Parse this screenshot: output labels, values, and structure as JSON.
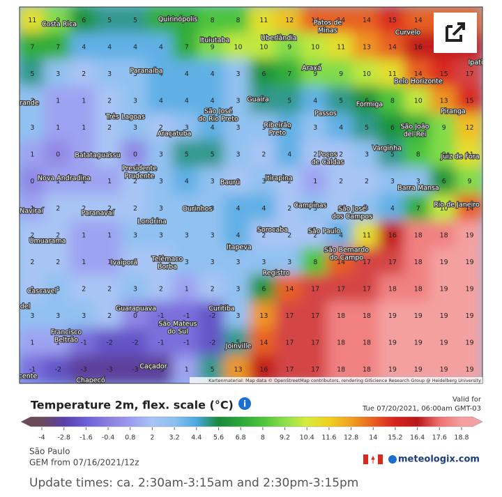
{
  "map": {
    "grid": [
      [
        11,
        9,
        6,
        5,
        5,
        7,
        7,
        8,
        8,
        11,
        12,
        14,
        14,
        14,
        15,
        14,
        14,
        14
      ],
      [
        7,
        7,
        4,
        4,
        4,
        4,
        7,
        9,
        10,
        10,
        9,
        10,
        11,
        13,
        14,
        16,
        16,
        16
      ],
      [
        5,
        3,
        2,
        3,
        3,
        4,
        4,
        4,
        3,
        6,
        7,
        9,
        9,
        10,
        11,
        14,
        15,
        17
      ],
      [
        3,
        1,
        1,
        2,
        3,
        4,
        4,
        4,
        3,
        5,
        5,
        4,
        5,
        6,
        8,
        10,
        13,
        15
      ],
      [
        3,
        1,
        1,
        2,
        3,
        2,
        3,
        4,
        3,
        3,
        4,
        3,
        4,
        5,
        6,
        7,
        9,
        12
      ],
      [
        1,
        0,
        1,
        2,
        0,
        3,
        5,
        5,
        3,
        2,
        4,
        2,
        2,
        3,
        5,
        8,
        9,
        11
      ],
      [
        0,
        1,
        1,
        1,
        2,
        3,
        4,
        3,
        2,
        3,
        2,
        1,
        2,
        2,
        3,
        3,
        6,
        9
      ],
      [
        1,
        2,
        2,
        2,
        2,
        3,
        3,
        3,
        4,
        4,
        2,
        3,
        2,
        3,
        4,
        7,
        10,
        14
      ],
      [
        2,
        2,
        1,
        1,
        3,
        3,
        3,
        3,
        4,
        2,
        2,
        2,
        4,
        11,
        16,
        18,
        18,
        19
      ],
      [
        2,
        2,
        1,
        1,
        2,
        2,
        3,
        3,
        3,
        3,
        3,
        8,
        14,
        17,
        17,
        18,
        19,
        19
      ],
      [
        2,
        3,
        2,
        2,
        3,
        2,
        1,
        2,
        3,
        6,
        14,
        17,
        17,
        17,
        18,
        18,
        19,
        19
      ],
      [
        3,
        3,
        3,
        2,
        0,
        -1,
        -1,
        -2,
        3,
        13,
        17,
        17,
        18,
        18,
        19,
        19,
        19,
        19
      ],
      [
        1,
        1,
        -1,
        -2,
        -2,
        -1,
        -1,
        -2,
        5,
        14,
        17,
        17,
        18,
        18,
        19,
        19,
        19,
        19
      ],
      [
        -1,
        -2,
        -3,
        -3,
        -3,
        -3,
        1,
        5,
        13,
        16,
        17,
        17,
        18,
        18,
        19,
        19,
        19,
        19
      ]
    ],
    "cities": [
      "Costa Rica",
      "Quirinópolis",
      "Ituiutaba",
      "Uberlândia",
      [
        "Patos de",
        "Minas"
      ],
      "Curvelo",
      "Ipati",
      "Araxá",
      "Paranaíba",
      "Belo Horizonte",
      "Guaíra",
      "Formiga",
      "Passos",
      "Três Lagoas",
      [
        "São José",
        "do Rio Preto"
      ],
      "Piranga",
      [
        "Ribeirão",
        "Preto"
      ],
      [
        "São João",
        "del-Rei"
      ],
      "Araçatuba",
      "Varginha",
      "Batataguassu",
      [
        "Poços",
        "de Caldas"
      ],
      "Juiz de Fora",
      [
        "Presidente",
        "Prudente"
      ],
      "Nova Andradina",
      "Bauru",
      "Itirapina",
      "Barra Mansa",
      "Campinas",
      [
        "São José",
        "dos Campos"
      ],
      "Rio de Janeiro",
      "Naviraí",
      "Paranavaí",
      "Ourinhos",
      "Londrina",
      "Sorocaba",
      "São Paulo",
      "Umuarama",
      [
        "São Bernardo",
        "do Campo"
      ],
      "Itapeva",
      [
        "Telêmaco",
        "Borba"
      ],
      "Ivaiporã",
      "Registro",
      "Cascavel",
      "Guarapuava",
      "Curitiba",
      [
        "São Mateus",
        "do Sul"
      ],
      [
        "Francisco",
        "Beltrão"
      ],
      "Joinville",
      "Caçador",
      "Chapecó",
      "rande",
      "del",
      "cente"
    ],
    "attribution": "Kartenmaterial: Map data © OpenStreetMap contributors, rendering GIScience Research Group @ Heidelberg University"
  },
  "legend": {
    "title": "Temperature 2m, flex. scale (°C)",
    "ticks": [
      -4,
      -2.8,
      -1.6,
      -0.4,
      0.8,
      2,
      3.2,
      4.4,
      5.6,
      6.8,
      8,
      9.2,
      10.4,
      11.6,
      12.8,
      14,
      15.2,
      16.4,
      17.6,
      18.8
    ],
    "colors": [
      "#6b4a5a",
      "#5a3fa8",
      "#6a5fd8",
      "#8a7ee0",
      "#9c9cf0",
      "#a8c4f5",
      "#8cc0f0",
      "#4aa8e0",
      "#1a8a3a",
      "#2aa83a",
      "#4cc43c",
      "#8ce04a",
      "#d8ec3c",
      "#f0d020",
      "#f0a020",
      "#e86020",
      "#d82020",
      "#b81818",
      "#f07070",
      "#f4a0a0"
    ]
  },
  "valid_label": "Valid for",
  "valid_time": "Tue 07/20/2021, 06:00am GMT-03",
  "location": "São Paulo",
  "model": "GEM from 07/16/2021/12z",
  "brand": "meteologix.com",
  "update_times": "Update times: ca. 2:30am-3:15am and 2:30pm-3:15pm"
}
